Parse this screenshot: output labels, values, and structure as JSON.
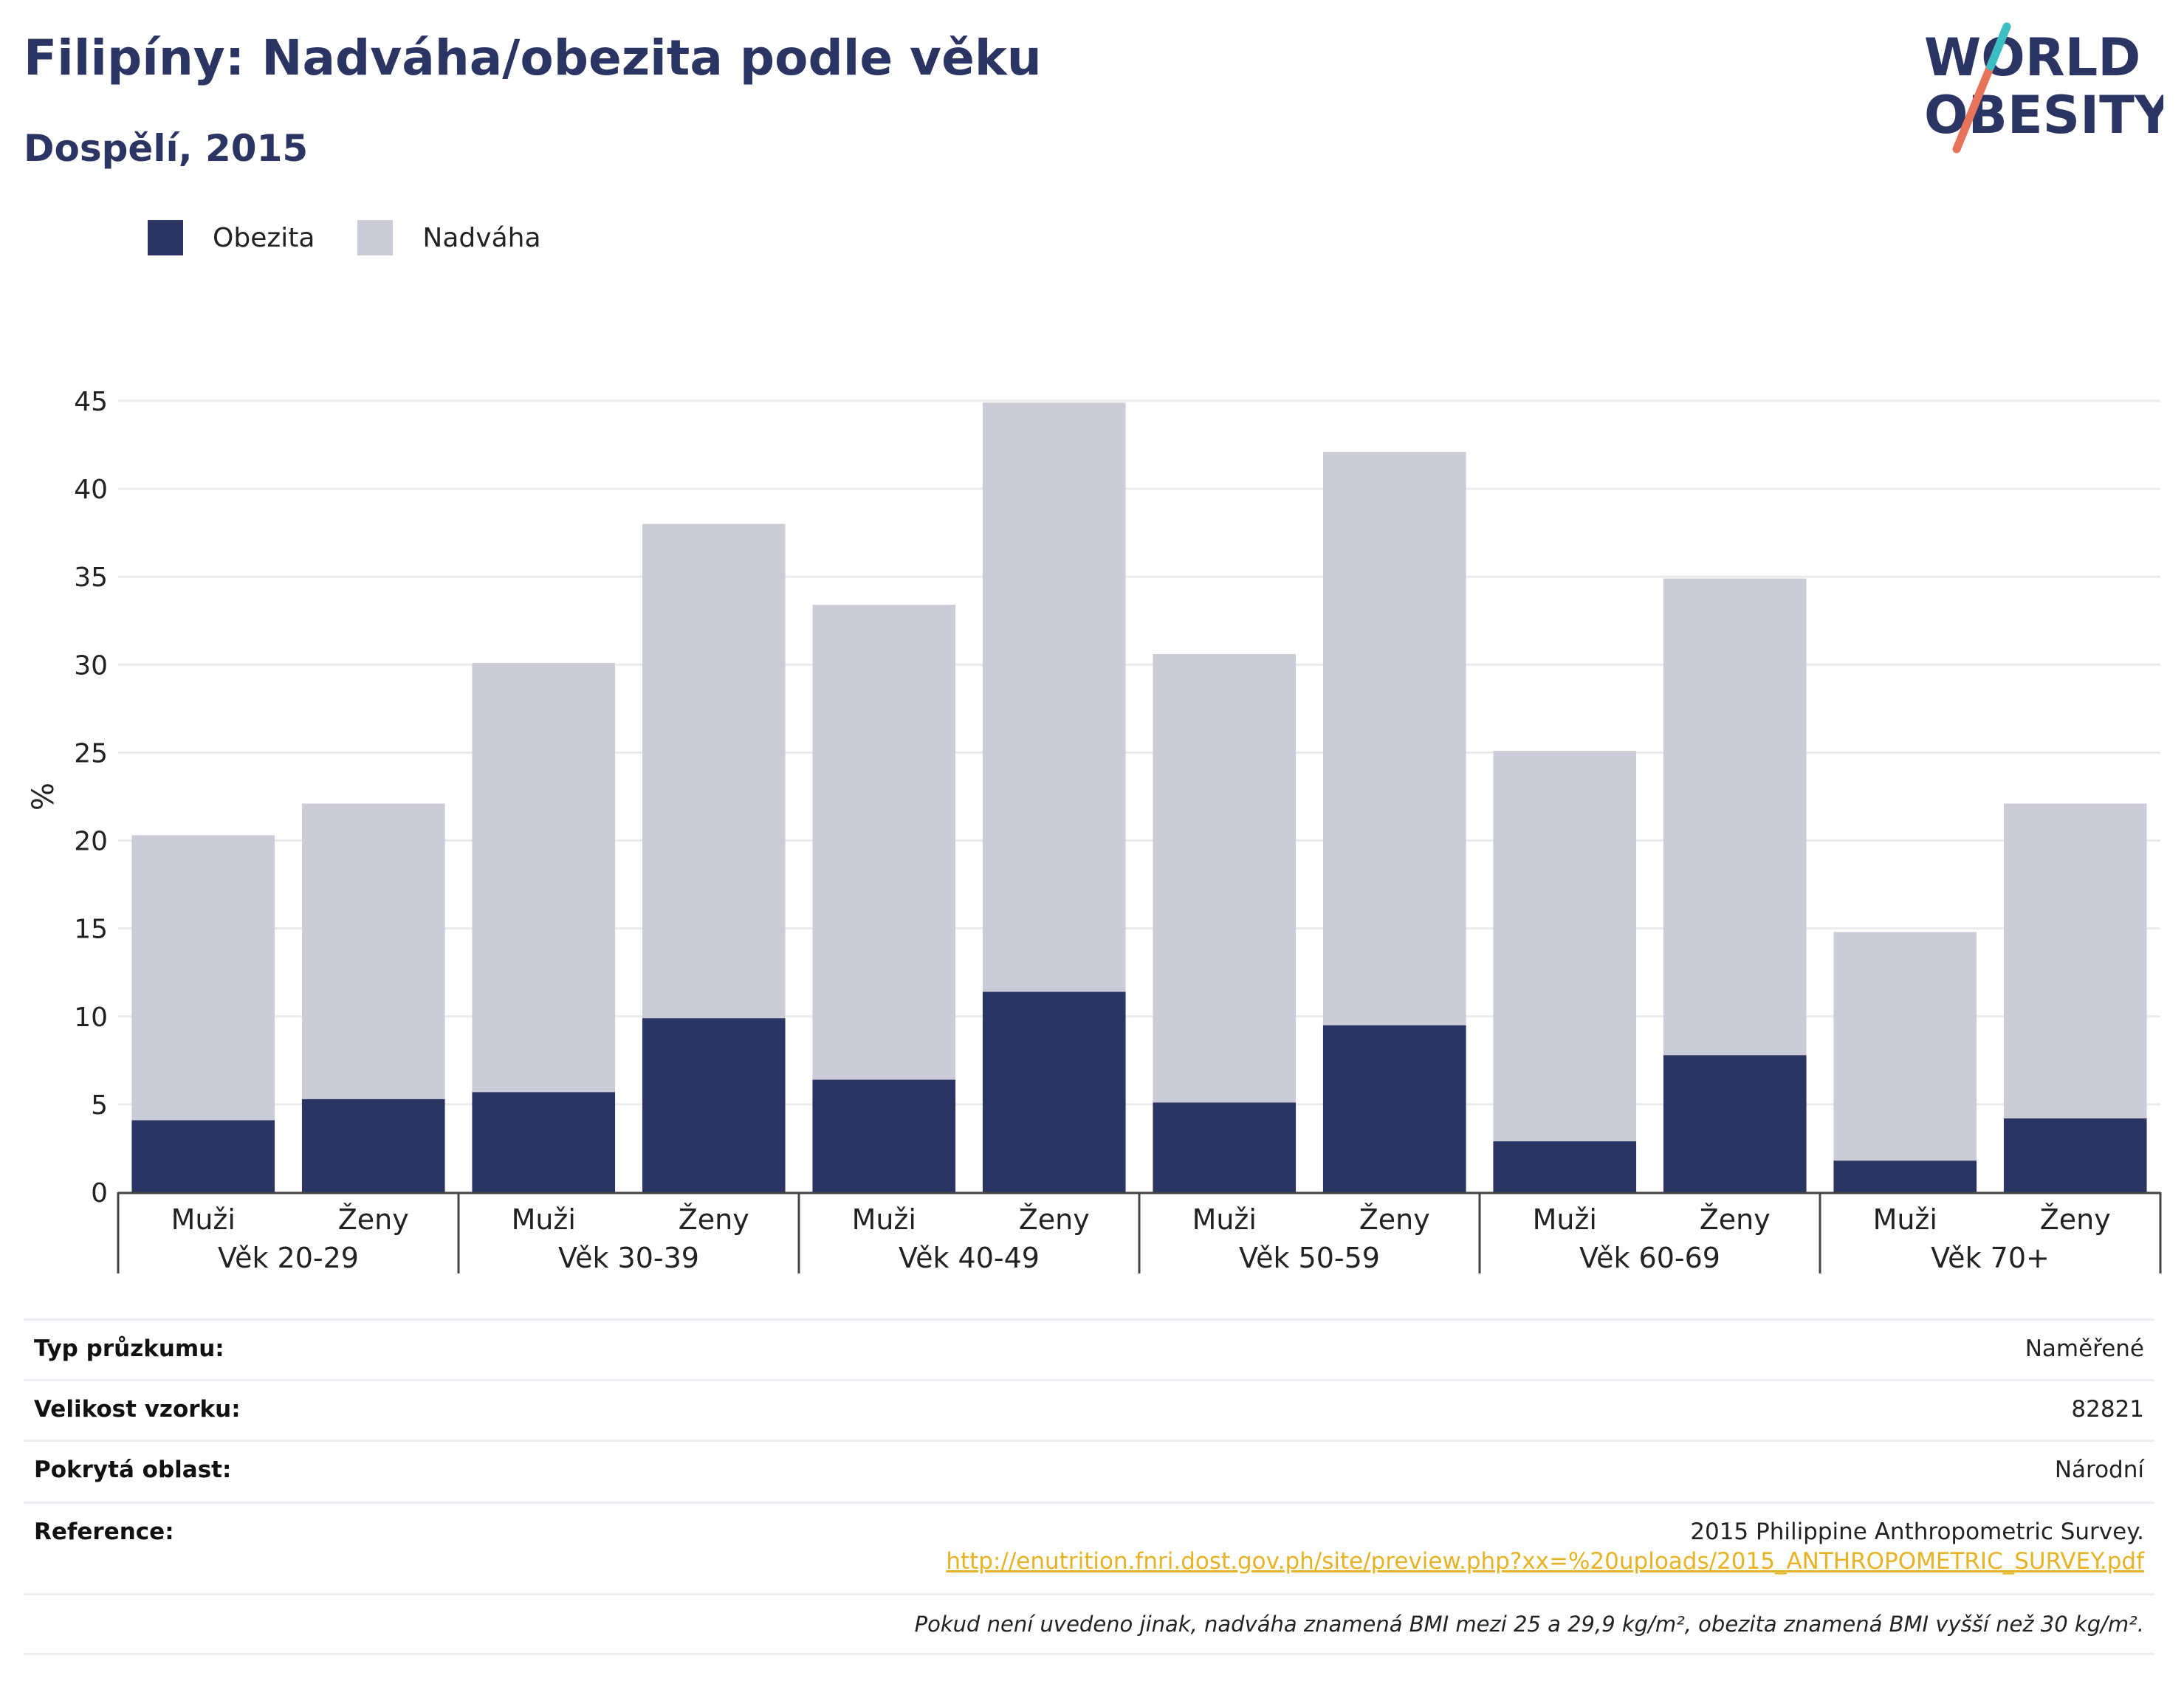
{
  "header": {
    "title": "Filipíny: Nadváha/obezita podle věku",
    "subtitle": "Dospělí, 2015"
  },
  "logo": {
    "line1": "WORLD",
    "line2": "OBESITY"
  },
  "colors": {
    "obesity": "#2b3563",
    "overweight": "#cbccd7",
    "title": "#2b3563",
    "link": "#e6b324"
  },
  "chart_data": {
    "type": "bar",
    "stacked": true,
    "ylabel": "%",
    "ylim": [
      0,
      45
    ],
    "yticks": [
      0,
      5,
      10,
      15,
      20,
      25,
      30,
      35,
      40,
      45
    ],
    "grid": true,
    "legend_position": "top-left",
    "groups": [
      "Věk 20-29",
      "Věk 30-39",
      "Věk 40-49",
      "Věk 50-59",
      "Věk 60-69",
      "Věk 70+"
    ],
    "subcategories": [
      "Muži",
      "Ženy"
    ],
    "series": [
      {
        "name": "Obezita",
        "values": [
          4.1,
          5.3,
          5.7,
          9.9,
          6.4,
          11.4,
          5.1,
          9.5,
          2.9,
          7.8,
          1.8,
          4.2
        ]
      },
      {
        "name": "Nadváha",
        "values": [
          16.2,
          16.8,
          24.4,
          28.1,
          27.0,
          33.5,
          25.5,
          32.6,
          22.2,
          27.1,
          13.0,
          17.9
        ]
      }
    ]
  },
  "meta": {
    "survey_type_label": "Typ průzkumu:",
    "survey_type_value": "Naměřené",
    "sample_size_label": "Velikost vzorku:",
    "sample_size_value": "82821",
    "coverage_label": "Pokrytá oblast:",
    "coverage_value": "Národní",
    "reference_label": "Reference:",
    "reference_text": "2015 Philippine Anthropometric Survey.",
    "reference_link": "http://enutrition.fnri.dost.gov.ph/site/preview.php?xx=%20uploads/2015_ANTHROPOMETRIC_SURVEY.pdf",
    "note": "Pokud není uvedeno jinak, nadváha znamená BMI mezi 25 a 29,9 kg/m², obezita znamená BMI vyšší než 30 kg/m²."
  }
}
